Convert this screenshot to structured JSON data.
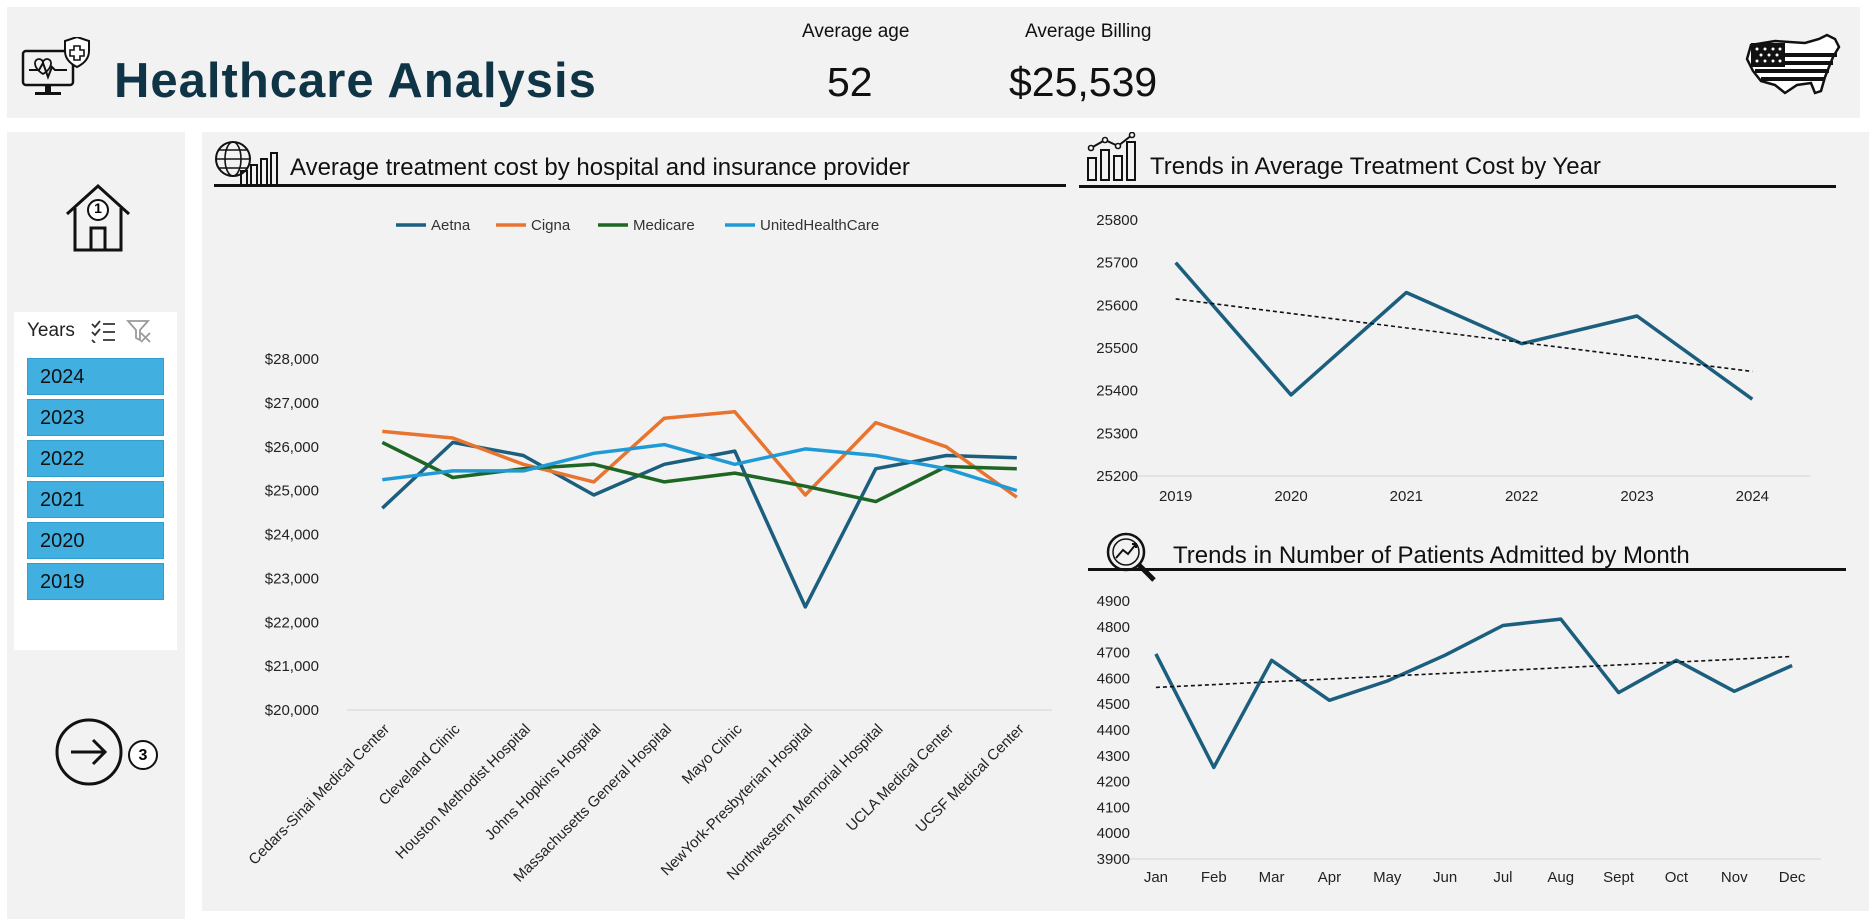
{
  "header": {
    "title": "Healthcare Analysis",
    "kpis": [
      {
        "label": "Average age",
        "value": "52"
      },
      {
        "label": "Average Billing",
        "value": "$25,539"
      }
    ],
    "title_color": "#0f3446"
  },
  "sidebar": {
    "home_badge": "1",
    "next_badge": "3",
    "slicer": {
      "title": "Years",
      "items": [
        "2024",
        "2023",
        "2022",
        "2021",
        "2020",
        "2019"
      ],
      "selected_color": "#41b0e0"
    }
  },
  "charts": {
    "hospital": {
      "title": "Average treatment cost by hospital and insurance provider"
    },
    "year": {
      "title": "Trends in Average Treatment Cost by Year"
    },
    "month": {
      "title": "Trends in Number of Patients Admitted by Month"
    }
  },
  "chart_data": [
    {
      "id": "hospital",
      "type": "line",
      "title": "Average treatment cost by hospital and insurance provider",
      "categories": [
        "Cedars-Sinai Medical Center",
        "Cleveland Clinic",
        "Houston Methodist Hospital",
        "Johns Hopkins Hospital",
        "Massachusetts General Hospital",
        "Mayo Clinic",
        "NewYork-Presbyterian Hospital",
        "Northwestern Memorial Hospital",
        "UCLA Medical Center",
        "UCSF Medical Center"
      ],
      "series": [
        {
          "name": "Aetna",
          "color": "#1b5e7e",
          "values": [
            24600,
            26100,
            25800,
            24900,
            25600,
            25900,
            22350,
            25500,
            25800,
            25750
          ]
        },
        {
          "name": "Cigna",
          "color": "#e8742f",
          "values": [
            26350,
            26200,
            25600,
            25200,
            26650,
            26800,
            24900,
            26550,
            26000,
            24850
          ]
        },
        {
          "name": "Medicare",
          "color": "#1e6623",
          "values": [
            26100,
            25300,
            25500,
            25600,
            25200,
            25400,
            25100,
            24750,
            25550,
            25500
          ]
        },
        {
          "name": "UnitedHealthCare",
          "color": "#1f9ad6",
          "values": [
            25250,
            25450,
            25450,
            25850,
            26050,
            25600,
            25950,
            25800,
            25500,
            25000
          ]
        }
      ],
      "yticks": [
        "$20,000",
        "$21,000",
        "$22,000",
        "$23,000",
        "$24,000",
        "$25,000",
        "$26,000",
        "$27,000",
        "$28,000"
      ],
      "ylim": [
        20000,
        28000
      ],
      "legend": "top",
      "grid": false
    },
    {
      "id": "year",
      "type": "line",
      "title": "Trends in Average Treatment Cost by Year",
      "categories": [
        "2019",
        "2020",
        "2021",
        "2022",
        "2023",
        "2024"
      ],
      "values": [
        25700,
        25390,
        25630,
        25510,
        25575,
        25380
      ],
      "trendline": [
        25615,
        25445
      ],
      "yticks": [
        "25200",
        "25300",
        "25400",
        "25500",
        "25600",
        "25700",
        "25800"
      ],
      "ylim": [
        25200,
        25800
      ],
      "color": "#1b5e7e",
      "grid": false
    },
    {
      "id": "month",
      "type": "line",
      "title": "Trends in Number of Patients Admitted by Month",
      "categories": [
        "Jan",
        "Feb",
        "Mar",
        "Apr",
        "May",
        "Jun",
        "Jul",
        "Aug",
        "Sept",
        "Oct",
        "Nov",
        "Dec"
      ],
      "values": [
        4695,
        4255,
        4670,
        4515,
        4590,
        4690,
        4805,
        4830,
        4545,
        4670,
        4550,
        4650
      ],
      "trendline": [
        4565,
        4685
      ],
      "yticks": [
        "3900",
        "4000",
        "4100",
        "4200",
        "4300",
        "4400",
        "4500",
        "4600",
        "4700",
        "4800",
        "4900"
      ],
      "ylim": [
        3900,
        4900
      ],
      "color": "#1b5e7e",
      "grid": false
    }
  ]
}
